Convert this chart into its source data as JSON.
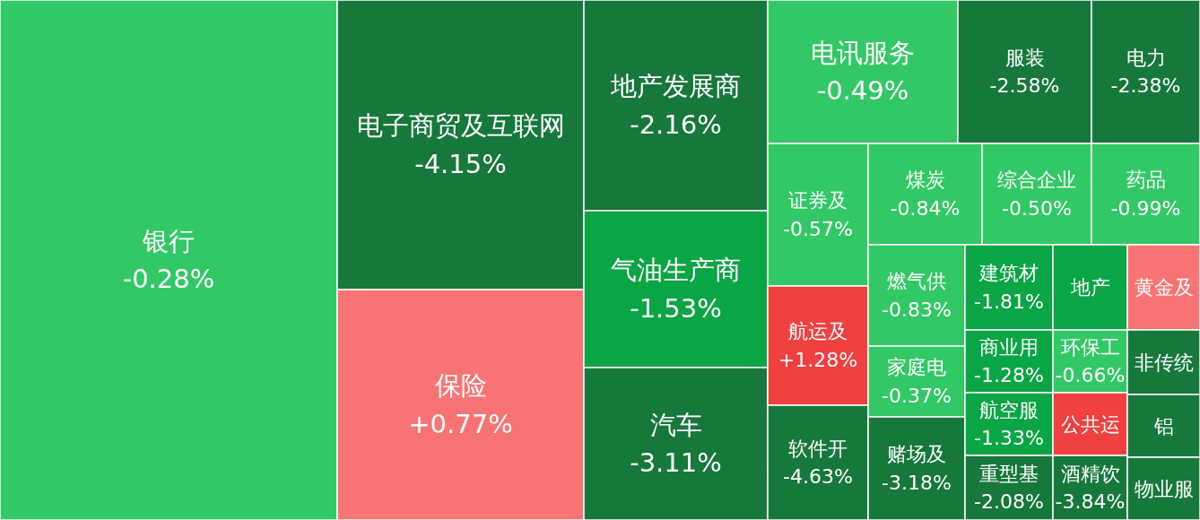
{
  "chart_data": {
    "type": "other",
    "categories": [
      "银行",
      "电子商贸及互联网",
      "保险",
      "地产发展商",
      "气油生产商",
      "汽车",
      "电讯服务",
      "服装",
      "电力",
      "证券及",
      "航运及",
      "软件开",
      "煤炭",
      "综合企业",
      "药品",
      "燃气供",
      "家庭电",
      "赌场及",
      "建筑材",
      "商业用",
      "航空服",
      "重型基",
      "地产",
      "环保工",
      "公共运",
      "酒精饮",
      "黄金及",
      "非传统",
      "铝",
      "物业服"
    ],
    "values": [
      -0.28,
      -4.15,
      0.77,
      -2.16,
      -1.53,
      -3.11,
      -0.49,
      -2.58,
      -2.38,
      -0.57,
      1.28,
      -4.63,
      -0.84,
      -0.5,
      -0.99,
      -0.83,
      -0.37,
      -3.18,
      -1.81,
      -1.28,
      -1.33,
      -2.08,
      null,
      -0.66,
      null,
      -3.84,
      null,
      null,
      null,
      null
    ],
    "value_labels": [
      "-0.28%",
      "-4.15%",
      "+0.77%",
      "-2.16%",
      "-1.53%",
      "-3.11%",
      "-0.49%",
      "-2.58%",
      "-2.38%",
      "-0.57%",
      "+1.28%",
      "-4.63%",
      "-0.84%",
      "-0.50%",
      "-0.99%",
      "-0.83%",
      "-0.37%",
      "-3.18%",
      "-1.81%",
      "-1.28%",
      "-1.33%",
      "-2.08%",
      null,
      "-0.66%",
      null,
      "-3.84%",
      null,
      null,
      null,
      null
    ],
    "colors": [
      "#33c866",
      "#17783c",
      "#f87474",
      "#17783c",
      "#0aa544",
      "#17783c",
      "#33c866",
      "#17783c",
      "#17783c",
      "#33c866",
      "#f04040",
      "#17783c",
      "#33c866",
      "#33c866",
      "#33c866",
      "#33c866",
      "#33c866",
      "#17783c",
      "#0aa544",
      "#0aa544",
      "#0aa544",
      "#17783c",
      "#0aa544",
      "#33c866",
      "#f04040",
      "#17783c",
      "#f87474",
      "#17783c",
      "#17783c",
      "#17783c"
    ]
  }
}
